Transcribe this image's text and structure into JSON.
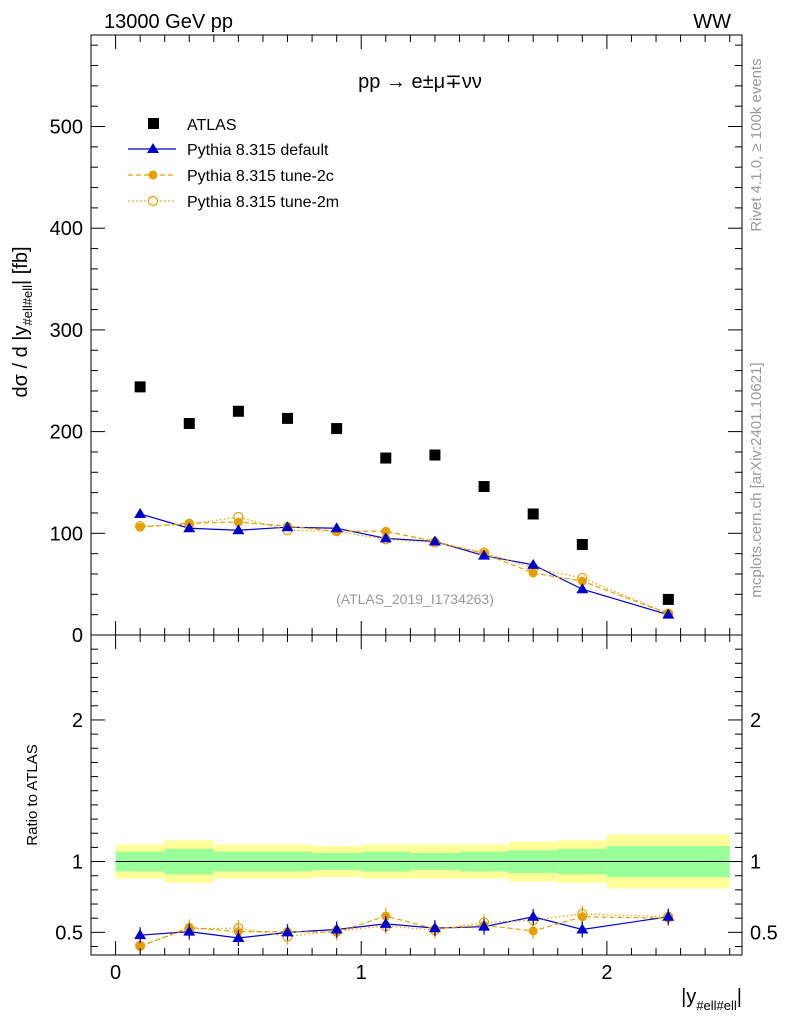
{
  "header": {
    "energy_label": "13000 GeV pp",
    "process_tag": "WW",
    "process_title": "pp → e±μ∓νν",
    "analysis_id": "(ATLAS_2019_I1734263)",
    "rivet_label": "Rivet 4.1.0, ≥ 100k events",
    "source_label": "mcplots.cern.ch [arXiv:2401.10621]"
  },
  "chart_data": [
    {
      "type": "scatter",
      "title": "pp → e±μ∓νν",
      "xlabel": "|y_#ell#ell|",
      "ylabel": "dσ / d |y_#ell#ell| [fb]",
      "xlim": [
        -0.1,
        2.55
      ],
      "ylim": [
        0,
        590
      ],
      "yticks": [
        0,
        100,
        200,
        300,
        400,
        500
      ],
      "x": [
        0.1,
        0.3,
        0.5,
        0.7,
        0.9,
        1.1,
        1.3,
        1.5,
        1.7,
        1.9,
        2.25
      ],
      "series": [
        {
          "name": "ATLAS",
          "color": "#000000",
          "values": [
            244,
            208,
            220,
            213,
            203,
            174,
            177,
            146,
            119,
            89,
            35
          ]
        },
        {
          "name": "Pythia 8.315 default",
          "color": "#0000cc",
          "values": [
            119,
            105,
            103,
            106,
            105,
            95,
            92,
            78,
            69,
            45,
            20
          ]
        },
        {
          "name": "Pythia 8.315 tune-2c",
          "color": "#e69f00",
          "values": [
            106,
            110,
            111,
            107,
            102,
            102,
            92,
            80,
            61,
            53,
            21
          ]
        },
        {
          "name": "Pythia 8.315 tune-2m",
          "color": "#e69f00",
          "values": [
            107,
            109,
            116,
            103,
            102,
            94,
            91,
            81,
            66,
            56,
            21
          ]
        }
      ]
    },
    {
      "type": "scatter",
      "title": "",
      "xlabel": "|y_#ell#ell|",
      "ylabel": "Ratio to ATLAS",
      "xlim": [
        -0.1,
        2.55
      ],
      "ylim": [
        0.34,
        2.6
      ],
      "yticks": [
        0.5,
        1,
        2
      ],
      "xticks": [
        0,
        1,
        2
      ],
      "x": [
        0.1,
        0.3,
        0.5,
        0.7,
        0.9,
        1.1,
        1.3,
        1.5,
        1.7,
        1.9,
        2.25
      ],
      "bins": [
        [
          0.0,
          0.2
        ],
        [
          0.2,
          0.4
        ],
        [
          0.4,
          0.6
        ],
        [
          0.6,
          0.8
        ],
        [
          0.8,
          1.0
        ],
        [
          1.0,
          1.2
        ],
        [
          1.2,
          1.4
        ],
        [
          1.4,
          1.6
        ],
        [
          1.6,
          1.8
        ],
        [
          1.8,
          2.0
        ],
        [
          2.0,
          2.5
        ]
      ],
      "band_inner": [
        0.07,
        0.09,
        0.07,
        0.07,
        0.06,
        0.07,
        0.06,
        0.07,
        0.08,
        0.09,
        0.11
      ],
      "band_outer": [
        0.12,
        0.15,
        0.12,
        0.12,
        0.11,
        0.12,
        0.12,
        0.12,
        0.14,
        0.15,
        0.19
      ],
      "series": [
        {
          "name": "Pythia 8.315 default",
          "color": "#0000cc",
          "values": [
            0.48,
            0.505,
            0.46,
            0.5,
            0.52,
            0.56,
            0.53,
            0.54,
            0.61,
            0.52,
            0.61
          ]
        },
        {
          "name": "Pythia 8.315 tune-2c",
          "color": "#e69f00",
          "values": [
            0.4,
            0.535,
            0.505,
            0.505,
            0.5,
            0.615,
            0.525,
            0.55,
            0.51,
            0.61,
            0.6
          ]
        },
        {
          "name": "Pythia 8.315 tune-2m",
          "color": "#e69f00",
          "values": [
            0.405,
            0.525,
            0.53,
            0.47,
            0.51,
            0.545,
            0.515,
            0.57,
            0.585,
            0.63,
            0.61
          ]
        }
      ]
    }
  ],
  "legend": [
    {
      "label": "ATLAS",
      "marker": "square",
      "line": "none",
      "color": "#000000"
    },
    {
      "label": "Pythia 8.315 default",
      "marker": "triangle",
      "line": "solid",
      "color": "#0000cc"
    },
    {
      "label": "Pythia 8.315 tune-2c",
      "marker": "circle",
      "line": "dashed",
      "color": "#e69f00"
    },
    {
      "label": "Pythia 8.315 tune-2m",
      "marker": "open-circle",
      "line": "dotted",
      "color": "#e69f00"
    }
  ],
  "axis_text": {
    "top_ylabel_main": "dσ / d |y",
    "top_ylabel_sub": "#ell#ell",
    "top_ylabel_end": "| [fb]",
    "bottom_ylabel": "Ratio to ATLAS",
    "xlabel_main": "|y",
    "xlabel_sub": "#ell#ell",
    "xlabel_end": "|"
  },
  "colors": {
    "band_inner": "#99ff99",
    "band_outer": "#ffff99"
  }
}
